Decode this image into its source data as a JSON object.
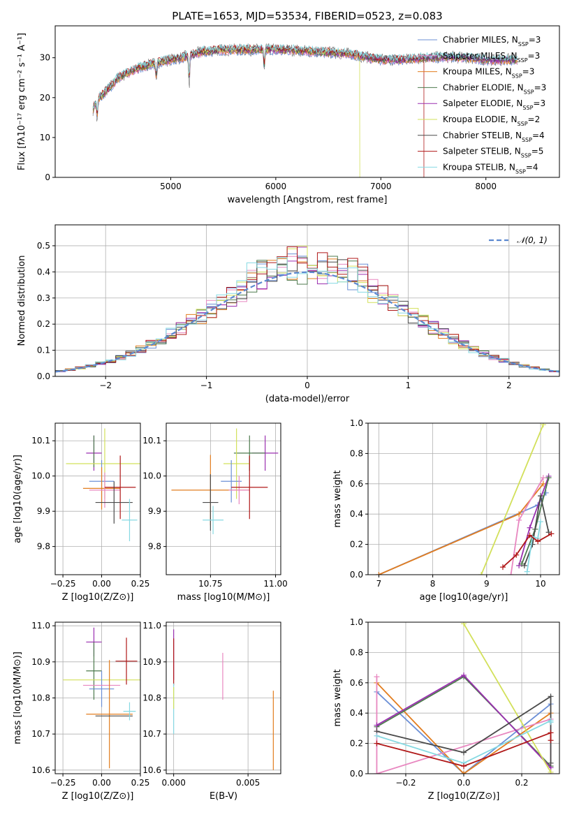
{
  "figure": {
    "title": "PLATE=1653, MJD=53534, FIBERID=0523, z=0.083"
  },
  "chart_data": [
    {
      "id": "spectrum",
      "type": "line",
      "xlabel": "wavelength [Angstrom, rest frame]",
      "ylabel": "Flux [fλ10⁻¹⁷ erg cm⁻² s⁻¹ A⁻¹]",
      "xlim": [
        3900,
        8700
      ],
      "ylim": [
        0,
        38
      ],
      "xticks": [
        5000,
        6000,
        7000,
        8000
      ],
      "yticks": [
        0,
        10,
        20,
        30
      ],
      "grid": false,
      "legend_position": "top-right",
      "observed_color": "#7f7f7f",
      "models": [
        {
          "name": "Chabrier MILES, N_SSP=3",
          "color": "#6b8fd6"
        },
        {
          "name": "Salpeter MILES, N_SSP=3",
          "color": "#e887c0"
        },
        {
          "name": "Kroupa MILES, N_SSP=3",
          "color": "#e27d1f"
        },
        {
          "name": "Chabrier ELODIE, N_SSP=3",
          "color": "#4d7a4d"
        },
        {
          "name": "Salpeter ELODIE, N_SSP=3",
          "color": "#9a2fb0"
        },
        {
          "name": "Kroupa ELODIE, N_SSP=2",
          "color": "#d2e05a"
        },
        {
          "name": "Chabrier STELIB, N_SSP=4",
          "color": "#4a4a4a"
        },
        {
          "name": "Salpeter STELIB, N_SSP=5",
          "color": "#b01818"
        },
        {
          "name": "Kroupa STELIB, N_SSP=4",
          "color": "#86d9e2"
        }
      ],
      "continuum_anchors": {
        "x": [
          4260,
          4300,
          4400,
          4500,
          4700,
          4900,
          5100,
          5300,
          5500,
          5800,
          6100,
          6400,
          6700,
          7000,
          7200,
          7400,
          7600,
          7800,
          8000,
          8200,
          8300
        ],
        "y": [
          17,
          19.5,
          22,
          25,
          27.5,
          29,
          30,
          31.5,
          32,
          32,
          32,
          31.5,
          31,
          29.5,
          29.5,
          30,
          30.2,
          30,
          29.5,
          29.5,
          29.5
        ]
      },
      "absorption_features": [
        {
          "x": 4300,
          "depth": 6
        },
        {
          "x": 4861,
          "depth": 5
        },
        {
          "x": 5175,
          "depth": 9
        },
        {
          "x": 5890,
          "depth": 6
        }
      ],
      "model_cutoffs": [
        {
          "model": "Kroupa ELODIE, N_SSP=2",
          "x": 6800
        },
        {
          "model": "Salpeter STELIB, N_SSP=5",
          "x": 7410
        }
      ]
    },
    {
      "id": "residuals",
      "type": "line",
      "xlabel": "(data-model)/error",
      "ylabel": "Normed distribution",
      "xlim": [
        -2.5,
        2.5
      ],
      "ylim": [
        0,
        0.58
      ],
      "xticks": [
        -2,
        -1,
        0,
        1,
        2
      ],
      "yticks": [
        0.0,
        0.1,
        0.2,
        0.3,
        0.4,
        0.5
      ],
      "grid": true,
      "legend_position": "top-right",
      "reference_curve": {
        "name": "𝒩(0, 1)",
        "color": "#5b88d0",
        "mean": 0,
        "sigma": 1
      },
      "bin_width": 0.1
    },
    {
      "id": "age-vs-Z",
      "type": "scatter",
      "xlabel": "Z [log10(Z/Z⊙)]",
      "ylabel": "age  [log10(age/yr)]",
      "xlim": [
        -0.3,
        0.25
      ],
      "ylim": [
        9.72,
        10.15
      ],
      "xticks": [
        -0.25,
        0.0,
        0.25
      ],
      "yticks": [
        9.8,
        9.9,
        10.0,
        10.1
      ],
      "grid": true,
      "points": [
        {
          "x": -0.05,
          "y": 10.065,
          "xerr": 0.05,
          "yerr": 0.05,
          "model": "Salpeter ELODIE, N_SSP=3"
        },
        {
          "x": -0.05,
          "y": 10.07,
          "xerr": 0.0,
          "yerr": 0.045,
          "model": "Chabrier ELODIE, N_SSP=3"
        },
        {
          "x": 0.02,
          "y": 10.035,
          "xerr": 0.25,
          "yerr": 0.1,
          "model": "Kroupa ELODIE, N_SSP=2"
        },
        {
          "x": 0.0,
          "y": 9.985,
          "xerr": 0.08,
          "yerr": 0.06,
          "model": "Chabrier MILES, N_SSP=3"
        },
        {
          "x": 0.0,
          "y": 9.965,
          "xerr": 0.12,
          "yerr": 0.06,
          "model": "Kroupa MILES, N_SSP=3"
        },
        {
          "x": 0.02,
          "y": 9.96,
          "xerr": 0.1,
          "yerr": 0.05,
          "model": "Salpeter MILES, N_SSP=3"
        },
        {
          "x": 0.12,
          "y": 9.968,
          "xerr": 0.1,
          "yerr": 0.09,
          "model": "Salpeter STELIB, N_SSP=5"
        },
        {
          "x": 0.08,
          "y": 9.925,
          "xerr": 0.12,
          "yerr": 0.06,
          "model": "Chabrier STELIB, N_SSP=4"
        },
        {
          "x": 0.18,
          "y": 9.875,
          "xerr": 0.05,
          "yerr": 0.06,
          "model": "Kroupa STELIB, N_SSP=4"
        }
      ]
    },
    {
      "id": "age-vs-mass",
      "type": "scatter",
      "xlabel": "mass [log10(M/M⊙)]",
      "ylabel": "",
      "xlim": [
        10.58,
        11.02
      ],
      "ylim": [
        9.72,
        10.15
      ],
      "xticks": [
        10.75,
        11.0
      ],
      "yticks": [
        9.8,
        9.9,
        10.0,
        10.1
      ],
      "grid": true,
      "points": [
        {
          "x": 10.96,
          "y": 10.065,
          "xerr": 0.05,
          "yerr": 0.05,
          "model": "Salpeter ELODIE, N_SSP=3"
        },
        {
          "x": 10.9,
          "y": 10.065,
          "xerr": 0.06,
          "yerr": 0.05,
          "model": "Chabrier ELODIE, N_SSP=3"
        },
        {
          "x": 10.85,
          "y": 10.035,
          "xerr": 0.05,
          "yerr": 0.1,
          "model": "Kroupa ELODIE, N_SSP=2"
        },
        {
          "x": 10.83,
          "y": 9.985,
          "xerr": 0.04,
          "yerr": 0.06,
          "model": "Chabrier MILES, N_SSP=3"
        },
        {
          "x": 10.75,
          "y": 9.96,
          "xerr": 0.15,
          "yerr": 0.1,
          "model": "Kroupa MILES, N_SSP=3"
        },
        {
          "x": 10.86,
          "y": 9.96,
          "xerr": 0.04,
          "yerr": 0.04,
          "model": "Salpeter MILES, N_SSP=3"
        },
        {
          "x": 10.9,
          "y": 9.968,
          "xerr": 0.07,
          "yerr": 0.09,
          "model": "Salpeter STELIB, N_SSP=5"
        },
        {
          "x": 10.75,
          "y": 9.925,
          "xerr": 0.03,
          "yerr": 0.08,
          "model": "Chabrier STELIB, N_SSP=4"
        },
        {
          "x": 10.76,
          "y": 9.875,
          "xerr": 0.04,
          "yerr": 0.04,
          "model": "Kroupa STELIB, N_SSP=4"
        }
      ]
    },
    {
      "id": "massweight-vs-age",
      "type": "line",
      "xlabel": "age  [log10(age/yr)]",
      "ylabel": "mass weight",
      "xlim": [
        6.8,
        10.35
      ],
      "ylim": [
        0,
        1.0
      ],
      "xticks": [
        7,
        8,
        9,
        10
      ],
      "yticks": [
        0.0,
        0.2,
        0.4,
        0.6,
        0.8,
        1.0
      ],
      "grid": true,
      "series": [
        {
          "model": "Chabrier MILES, N_SSP=3",
          "x": [
            7.0,
            9.95,
            10.1
          ],
          "y": [
            0.0,
            0.46,
            0.54
          ]
        },
        {
          "model": "Kroupa MILES, N_SSP=3",
          "x": [
            7.0,
            9.6,
            10.05
          ],
          "y": [
            0.0,
            0.4,
            0.6
          ]
        },
        {
          "model": "Kroupa ELODIE, N_SSP=2",
          "x": [
            8.9,
            10.05
          ],
          "y": [
            0.0,
            0.99
          ]
        },
        {
          "model": "Salpeter MILES, N_SSP=3",
          "x": [
            9.45,
            9.6,
            10.05
          ],
          "y": [
            0.0,
            0.36,
            0.64
          ]
        },
        {
          "model": "Salpeter ELODIE, N_SSP=3",
          "x": [
            9.6,
            9.8,
            10.15
          ],
          "y": [
            0.06,
            0.31,
            0.65
          ]
        },
        {
          "model": "Chabrier ELODIE, N_SSP=3",
          "x": [
            9.65,
            9.9,
            10.15
          ],
          "y": [
            0.07,
            0.3,
            0.64
          ]
        },
        {
          "model": "Chabrier STELIB, N_SSP=4",
          "x": [
            9.7,
            9.85,
            10.0,
            10.15
          ],
          "y": [
            0.06,
            0.2,
            0.52,
            0.28
          ]
        },
        {
          "model": "Kroupa STELIB, N_SSP=4",
          "x": [
            9.75,
            9.85,
            9.95,
            10.0
          ],
          "y": [
            0.02,
            0.25,
            0.24,
            0.35
          ]
        },
        {
          "model": "Salpeter STELIB, N_SSP=5",
          "x": [
            9.3,
            9.55,
            9.8,
            9.95,
            10.2
          ],
          "y": [
            0.05,
            0.13,
            0.26,
            0.22,
            0.27
          ]
        }
      ]
    },
    {
      "id": "mass-vs-Z",
      "type": "scatter",
      "xlabel": "Z [log10(Z/Z⊙)]",
      "ylabel": "mass [log10(M/M⊙)]",
      "xlim": [
        -0.3,
        0.25
      ],
      "ylim": [
        10.59,
        11.01
      ],
      "xticks": [
        -0.25,
        0.0,
        0.25
      ],
      "yticks": [
        10.6,
        10.7,
        10.8,
        10.9,
        11.0
      ],
      "grid": true,
      "points": [
        {
          "x": -0.05,
          "y": 10.955,
          "xerr": 0.05,
          "yerr": 0.04,
          "model": "Salpeter ELODIE, N_SSP=3"
        },
        {
          "x": -0.05,
          "y": 10.875,
          "xerr": 0.05,
          "yerr": 0.08,
          "model": "Chabrier ELODIE, N_SSP=3"
        },
        {
          "x": 0.0,
          "y": 10.85,
          "xerr": 0.25,
          "yerr": 0.0,
          "model": "Kroupa ELODIE, N_SSP=2"
        },
        {
          "x": 0.0,
          "y": 10.825,
          "xerr": 0.08,
          "yerr": 0.05,
          "model": "Chabrier MILES, N_SSP=3"
        },
        {
          "x": 0.0,
          "y": 10.835,
          "xerr": 0.12,
          "yerr": 0.0,
          "model": "Salpeter MILES, N_SSP=3"
        },
        {
          "x": 0.05,
          "y": 10.755,
          "xerr": 0.15,
          "yerr": 0.15,
          "model": "Kroupa MILES, N_SSP=3"
        },
        {
          "x": 0.08,
          "y": 10.75,
          "xerr": 0.12,
          "yerr": 0.0,
          "model": "Chabrier STELIB, N_SSP=4"
        },
        {
          "x": 0.16,
          "y": 10.902,
          "xerr": 0.07,
          "yerr": 0.065,
          "model": "Salpeter STELIB, N_SSP=5"
        },
        {
          "x": 0.18,
          "y": 10.763,
          "xerr": 0.04,
          "yerr": 0.025,
          "model": "Kroupa STELIB, N_SSP=4"
        }
      ]
    },
    {
      "id": "mass-vs-EBV",
      "type": "scatter",
      "xlabel": "E(B-V)",
      "ylabel": "",
      "xlim": [
        -0.0005,
        0.0072
      ],
      "ylim": [
        10.59,
        11.01
      ],
      "xticks": [
        0.0,
        0.005
      ],
      "yticks": [
        10.6,
        10.7,
        10.8,
        10.9,
        11.0
      ],
      "grid": true,
      "points": [
        {
          "x": 0.0,
          "y": 10.92,
          "xerr": 0.0,
          "yerr": 0.07,
          "model": "Salpeter ELODIE, N_SSP=3"
        },
        {
          "x": 0.0,
          "y": 10.9,
          "xerr": 0.0,
          "yerr": 0.065,
          "model": "Salpeter STELIB, N_SSP=5"
        },
        {
          "x": 0.0,
          "y": 10.77,
          "xerr": 0.0,
          "yerr": 0.07,
          "model": "Kroupa STELIB, N_SSP=4"
        },
        {
          "x": 0.0,
          "y": 10.8,
          "xerr": 0.0,
          "yerr": 0.03,
          "model": "Kroupa ELODIE, N_SSP=2"
        },
        {
          "x": 0.0033,
          "y": 10.86,
          "xerr": 0.0,
          "yerr": 0.065,
          "model": "Salpeter MILES, N_SSP=3"
        },
        {
          "x": 0.0067,
          "y": 10.71,
          "xerr": 0.0,
          "yerr": 0.11,
          "model": "Kroupa MILES, N_SSP=3"
        }
      ]
    },
    {
      "id": "massweight-vs-Z",
      "type": "line",
      "xlabel": "Z [log10(Z/Z⊙)]",
      "ylabel": "mass weight",
      "xlim": [
        -0.33,
        0.33
      ],
      "ylim": [
        0,
        1.0
      ],
      "xticks": [
        -0.2,
        0.0,
        0.2
      ],
      "yticks": [
        0.0,
        0.2,
        0.4,
        0.6,
        0.8,
        1.0
      ],
      "grid": true,
      "series": [
        {
          "model": "Chabrier MILES, N_SSP=3",
          "x": [
            -0.3,
            0.0,
            0.3
          ],
          "y": [
            0.54,
            0.0,
            0.46
          ]
        },
        {
          "model": "Kroupa MILES, N_SSP=3",
          "x": [
            -0.3,
            0.0,
            0.3
          ],
          "y": [
            0.6,
            0.0,
            0.4
          ]
        },
        {
          "model": "Salpeter MILES, N_SSP=3",
          "x": [
            -0.3,
            -0.3,
            0.3,
            0.3
          ],
          "y": [
            0.64,
            0.0,
            0.36,
            0.0
          ]
        },
        {
          "model": "Chabrier ELODIE, N_SSP=3",
          "x": [
            -0.3,
            0.0,
            0.3
          ],
          "y": [
            0.31,
            0.64,
            0.05
          ]
        },
        {
          "model": "Salpeter ELODIE, N_SSP=3",
          "x": [
            -0.3,
            0.0,
            0.3
          ],
          "y": [
            0.32,
            0.65,
            0.04
          ]
        },
        {
          "model": "Kroupa ELODIE, N_SSP=2",
          "x": [
            0.0,
            0.3
          ],
          "y": [
            0.99,
            0.01
          ]
        },
        {
          "model": "Chabrier STELIB, N_SSP=4",
          "x": [
            -0.3,
            0.0,
            0.3,
            0.3
          ],
          "y": [
            0.28,
            0.14,
            0.51,
            0.07
          ]
        },
        {
          "model": "Kroupa STELIB, N_SSP=4",
          "x": [
            -0.3,
            0.0,
            0.3,
            0.3
          ],
          "y": [
            0.25,
            0.07,
            0.35,
            0.34
          ]
        },
        {
          "model": "Salpeter STELIB, N_SSP=5",
          "x": [
            -0.3,
            0.0,
            0.3,
            0.3
          ],
          "y": [
            0.2,
            0.05,
            0.27,
            0.22
          ]
        }
      ]
    }
  ]
}
